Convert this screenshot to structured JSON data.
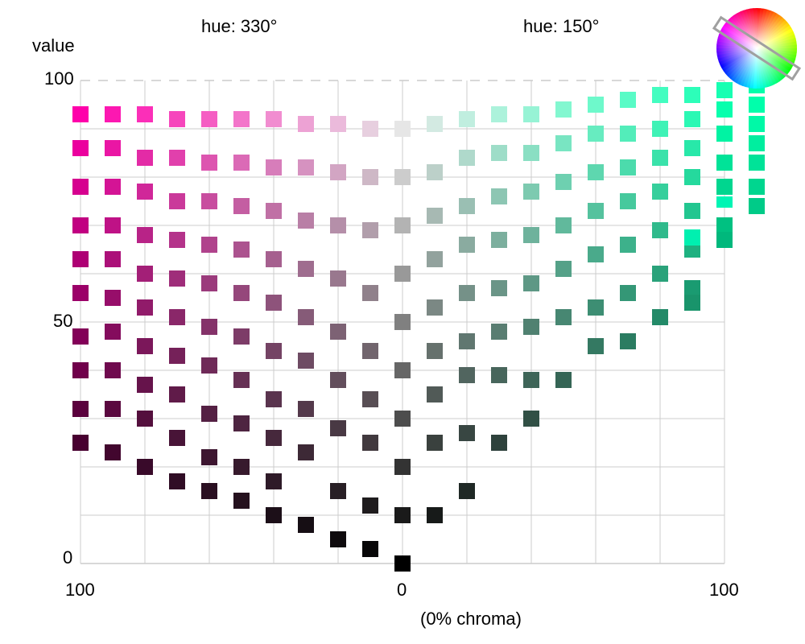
{
  "labels": {
    "hue_left": "hue: 330°",
    "hue_right": "hue: 150°",
    "value_axis_title": "value",
    "value_ticks": [
      "100",
      "50",
      "0"
    ],
    "chroma_left": "100",
    "chroma_center": "0",
    "chroma_right": "100",
    "chroma_note": "(0% chroma)"
  },
  "colors": {
    "grid": "#cccccc",
    "dashed_top": "#cccccc",
    "hue_left_example": "#ff00aa",
    "hue_right_example": "#00ffaa",
    "selector_outline": "#a0a0a0"
  },
  "swatches": {
    "hue_left_deg": 330,
    "hue_right_deg": 150,
    "left_column_values": [
      [
        93,
        86,
        78,
        70,
        63,
        56,
        47,
        40,
        32,
        25
      ],
      [
        93,
        86,
        78,
        70,
        63,
        55,
        48,
        40,
        32,
        23
      ],
      [
        93,
        84,
        77,
        68,
        60,
        53,
        45,
        37,
        30,
        20
      ],
      [
        92,
        84,
        75,
        67,
        59,
        51,
        43,
        35,
        26,
        17
      ],
      [
        92,
        83,
        75,
        66,
        58,
        49,
        41,
        31,
        22,
        15
      ],
      [
        92,
        83,
        74,
        65,
        56,
        47,
        38,
        29,
        20,
        13
      ],
      [
        92,
        82,
        73,
        63,
        54,
        44,
        34,
        26,
        17,
        10
      ],
      [
        91,
        82,
        71,
        61,
        51,
        42,
        32,
        23,
        8
      ],
      [
        91,
        81,
        70,
        59,
        48,
        38,
        28,
        15,
        5
      ],
      [
        90,
        80,
        69,
        56,
        44,
        34,
        25,
        12,
        3
      ],
      [
        90,
        80,
        70,
        60,
        50,
        40,
        30,
        20,
        10,
        0
      ]
    ],
    "right_column_values": [
      [
        91,
        81,
        72,
        63,
        53,
        44,
        35,
        25,
        10
      ],
      [
        92,
        84,
        74,
        66,
        56,
        46,
        39,
        27,
        15
      ],
      [
        93,
        85,
        76,
        67,
        57,
        48,
        39,
        25
      ],
      [
        93,
        85,
        77,
        68,
        58,
        49,
        38,
        30
      ],
      [
        94,
        87,
        79,
        70,
        61,
        51,
        38
      ],
      [
        95,
        89,
        81,
        73,
        64,
        53,
        45
      ],
      [
        96,
        89,
        82,
        75,
        66,
        56,
        46
      ],
      [
        97,
        90,
        84,
        77,
        69,
        60,
        51
      ],
      [
        97,
        92,
        86,
        80,
        73,
        65,
        57,
        54
      ],
      [
        98,
        94,
        89,
        83,
        78,
        70,
        67
      ],
      [
        99,
        95,
        91,
        87,
        83,
        78,
        74
      ]
    ]
  }
}
